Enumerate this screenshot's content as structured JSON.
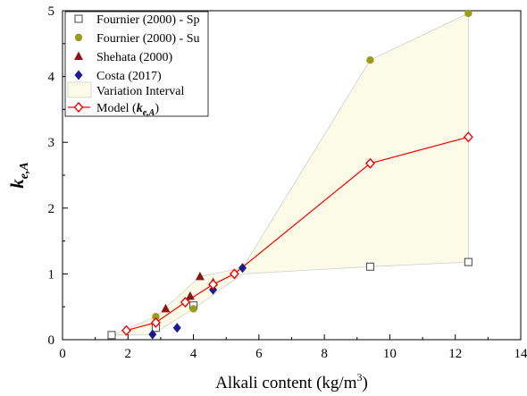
{
  "chart_data": {
    "type": "scatter",
    "xlabel": "Alkali content (kg/m",
    "xlabel_sup": "3",
    "xlabel_end": ")",
    "ylabel_main": "k",
    "ylabel_sub": "e,A",
    "xlim": [
      0,
      14
    ],
    "ylim": [
      0,
      5
    ],
    "xticks": [
      0,
      2,
      4,
      6,
      8,
      10,
      12,
      14
    ],
    "yticks": [
      0,
      1,
      2,
      3,
      4,
      5
    ],
    "grid": false,
    "legend_position": "top-left",
    "series": [
      {
        "name": "Fournier (2000) - Sp",
        "marker": "square-open",
        "color": "#555555",
        "points": [
          [
            1.5,
            0.07
          ],
          [
            2.85,
            0.18
          ],
          [
            4.0,
            0.52
          ],
          [
            9.4,
            1.11
          ],
          [
            12.4,
            1.18
          ]
        ]
      },
      {
        "name": "Fournier (2000) - Su",
        "marker": "circle",
        "color": "#9b9b1e",
        "points": [
          [
            2.85,
            0.35
          ],
          [
            4.0,
            0.47
          ],
          [
            9.4,
            4.25
          ],
          [
            12.4,
            4.96
          ]
        ]
      },
      {
        "name": "Shehata (2000)",
        "marker": "triangle",
        "color": "#8b1414",
        "points": [
          [
            3.15,
            0.47
          ],
          [
            3.9,
            0.66
          ],
          [
            4.2,
            0.96
          ],
          [
            4.6,
            0.87
          ]
        ]
      },
      {
        "name": "Costa (2017)",
        "marker": "diamond",
        "color": "#1c1c8a",
        "points": [
          [
            2.75,
            0.08
          ],
          [
            3.5,
            0.18
          ],
          [
            4.6,
            0.76
          ],
          [
            5.5,
            1.09
          ]
        ]
      }
    ],
    "variation_interval": {
      "name": "Variation Interval",
      "color": "#fbfbe8",
      "upper": [
        [
          1.5,
          0.07
        ],
        [
          2.85,
          0.35
        ],
        [
          4.2,
          0.96
        ],
        [
          5.5,
          1.09
        ],
        [
          9.4,
          4.25
        ],
        [
          12.4,
          4.96
        ]
      ],
      "lower": [
        [
          12.4,
          1.18
        ],
        [
          9.4,
          1.11
        ],
        [
          5.5,
          1.0
        ],
        [
          4.0,
          0.47
        ],
        [
          2.75,
          0.08
        ],
        [
          1.5,
          0.07
        ]
      ]
    },
    "model": {
      "name_prefix": "Model (",
      "name_main": "k",
      "name_sub": "e,A",
      "name_suffix": ")",
      "color": "#ff0000",
      "points": [
        [
          1.95,
          0.14
        ],
        [
          2.85,
          0.26
        ],
        [
          3.75,
          0.57
        ],
        [
          4.6,
          0.84
        ],
        [
          5.25,
          1.0
        ],
        [
          9.4,
          2.68
        ],
        [
          12.4,
          3.08
        ]
      ]
    }
  }
}
